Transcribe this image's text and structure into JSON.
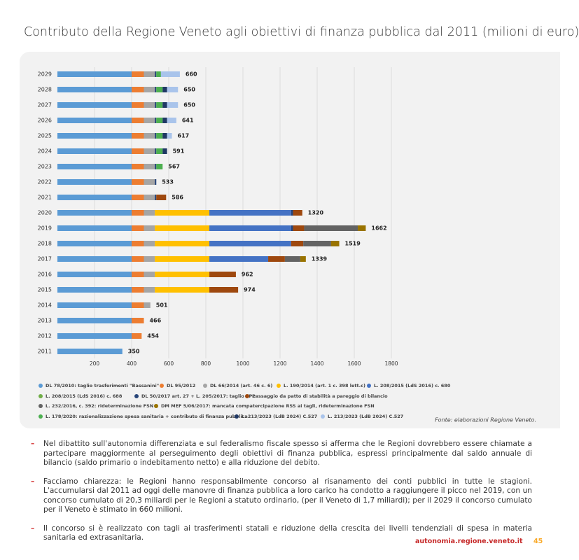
{
  "title": "Contributo della Regione Veneto agli obiettivi di finanza pubblica dal 2011 (milioni di euro)",
  "chart_data": {
    "type": "stacked-bar-horizontal",
    "categories": [
      "2029",
      "2028",
      "2027",
      "2026",
      "2025",
      "2024",
      "2023",
      "2022",
      "2021",
      "2020",
      "2019",
      "2018",
      "2017",
      "2016",
      "2015",
      "2014",
      "2013",
      "2012",
      "2011"
    ],
    "xlim": [
      0,
      1800
    ],
    "xticks": [
      200,
      400,
      600,
      800,
      1000,
      1200,
      1400,
      1600,
      1800
    ],
    "grid": true,
    "totals": [
      660,
      650,
      650,
      641,
      617,
      591,
      567,
      533,
      586,
      1320,
      1662,
      1519,
      1339,
      962,
      974,
      501,
      466,
      454,
      350
    ],
    "series": [
      {
        "name": "DL 78/2010: taglio trasferimenti \"Bassanini\"",
        "color": "#5b9bd5",
        "values": [
          400,
          400,
          400,
          400,
          400,
          400,
          400,
          400,
          400,
          400,
          400,
          400,
          400,
          400,
          400,
          400,
          400,
          400,
          350
        ]
      },
      {
        "name": "DL 95/2012",
        "color": "#ed7d31",
        "values": [
          66,
          66,
          66,
          66,
          66,
          66,
          66,
          66,
          66,
          66,
          66,
          66,
          66,
          66,
          66,
          66,
          66,
          54,
          null
        ]
      },
      {
        "name": "DL 66/2014 (art. 46 c. 6)",
        "color": "#a5a5a5",
        "values": [
          59,
          59,
          59,
          59,
          59,
          59,
          59,
          59,
          59,
          59,
          59,
          59,
          59,
          59,
          59,
          35,
          null,
          null,
          null
        ]
      },
      {
        "name": "L. 190/2014 (art. 1 c. 398 lett.c)",
        "color": "#ffc000",
        "values": [
          null,
          null,
          null,
          null,
          null,
          null,
          null,
          null,
          null,
          294,
          294,
          294,
          294,
          294,
          294,
          null,
          null,
          null,
          null
        ]
      },
      {
        "name": "L. 208/2015 (LdS 2016) c. 680",
        "color": "#4472c4",
        "values": [
          null,
          null,
          null,
          null,
          null,
          null,
          null,
          null,
          null,
          441,
          441,
          441,
          317,
          null,
          null,
          null,
          null,
          null,
          null
        ]
      },
      {
        "name": "L. 208/2015 (LdS 2016) c. 688",
        "color": "#70ad47",
        "values": [
          null,
          null,
          null,
          null,
          null,
          null,
          null,
          null,
          null,
          null,
          null,
          null,
          null,
          null,
          null,
          null,
          null,
          null,
          null
        ]
      },
      {
        "name": "DL 50/2017 art. 27 + L. 205/2017: taglio TPL",
        "color": "#264478",
        "values": [
          8,
          8,
          8,
          8,
          8,
          8,
          8,
          8,
          8,
          10,
          10,
          null,
          null,
          null,
          null,
          null,
          null,
          null,
          null
        ]
      },
      {
        "name": "Passaggio da patto di stabilità a pareggio di bilancio",
        "color": "#9e480e",
        "values": [
          null,
          null,
          null,
          null,
          null,
          null,
          null,
          null,
          53,
          50,
          60,
          65,
          90,
          143,
          155,
          null,
          null,
          null,
          null
        ]
      },
      {
        "name": "L. 232/2016, c. 392: rideterminazione FSN",
        "color": "#636363",
        "values": [
          null,
          null,
          null,
          null,
          null,
          null,
          null,
          null,
          null,
          null,
          289,
          150,
          83,
          null,
          null,
          null,
          null,
          null,
          null
        ]
      },
      {
        "name": "DM MEF 5/06/2017: mancata compatercipazione RSS ai tagli, rideterminazione FSN",
        "color": "#997300",
        "values": [
          null,
          null,
          null,
          null,
          null,
          null,
          null,
          null,
          null,
          null,
          43,
          44,
          30,
          null,
          null,
          null,
          null,
          null,
          null
        ]
      },
      {
        "name": "L. 178/2020: razionalizzazione spesa sanitaria + contributo di finanza pubblica",
        "color": "#4caf50",
        "values": [
          25,
          34,
          34,
          34,
          34,
          34,
          34,
          null,
          null,
          null,
          null,
          null,
          null,
          null,
          null,
          null,
          null,
          null,
          null
        ]
      },
      {
        "name": "L. 213/2023 (LdB 2024) C.527",
        "color": "#1f3864",
        "values": [
          null,
          24,
          24,
          24,
          24,
          24,
          null,
          null,
          null,
          null,
          null,
          null,
          null,
          null,
          null,
          null,
          null,
          null,
          null
        ]
      },
      {
        "name": "L. 213/2023 (LdB 2024) C.527",
        "color": "#a9c4eb",
        "values": [
          102,
          59,
          59,
          50,
          26,
          null,
          null,
          null,
          null,
          null,
          null,
          null,
          null,
          null,
          null,
          null,
          null,
          null,
          null
        ]
      }
    ]
  },
  "source": "Fonte: elaborazioni Regione Veneto.",
  "paragraphs": [
    "Nel dibattito sull'autonomia differenziata e sul federalismo fiscale spesso si afferma che le Regioni dovrebbero essere chiamate a partecipare maggiormente al perseguimento degli obiettivi di finanza pubblica, espressi principalmente dal saldo annuale di bilancio (saldo primario o indebitamento netto) e alla riduzione del debito.",
    "Facciamo chiarezza: le Regioni hanno responsabilmente concorso al risanamento dei conti pubblici in tutte le stagioni. L'accumularsi dal 2011 ad oggi delle manovre di finanza pubblica a loro carico ha condotto a raggiungere il picco nel 2019, con un concorso cumulato di 20,3 miliardi per le Regioni a statuto ordinario, (per il Veneto di 1,7 miliardi); per il 2029 il concorso cumulato per il Veneto è stimato in 660 milioni.",
    "Il concorso si è realizzato con tagli ai trasferimenti statali e riduzione della crescita dei livelli tendenziali di spesa in materia sanitaria ed extrasanitaria."
  ],
  "footer": {
    "site": "autonomia.regione.veneto.it",
    "page": 45
  }
}
